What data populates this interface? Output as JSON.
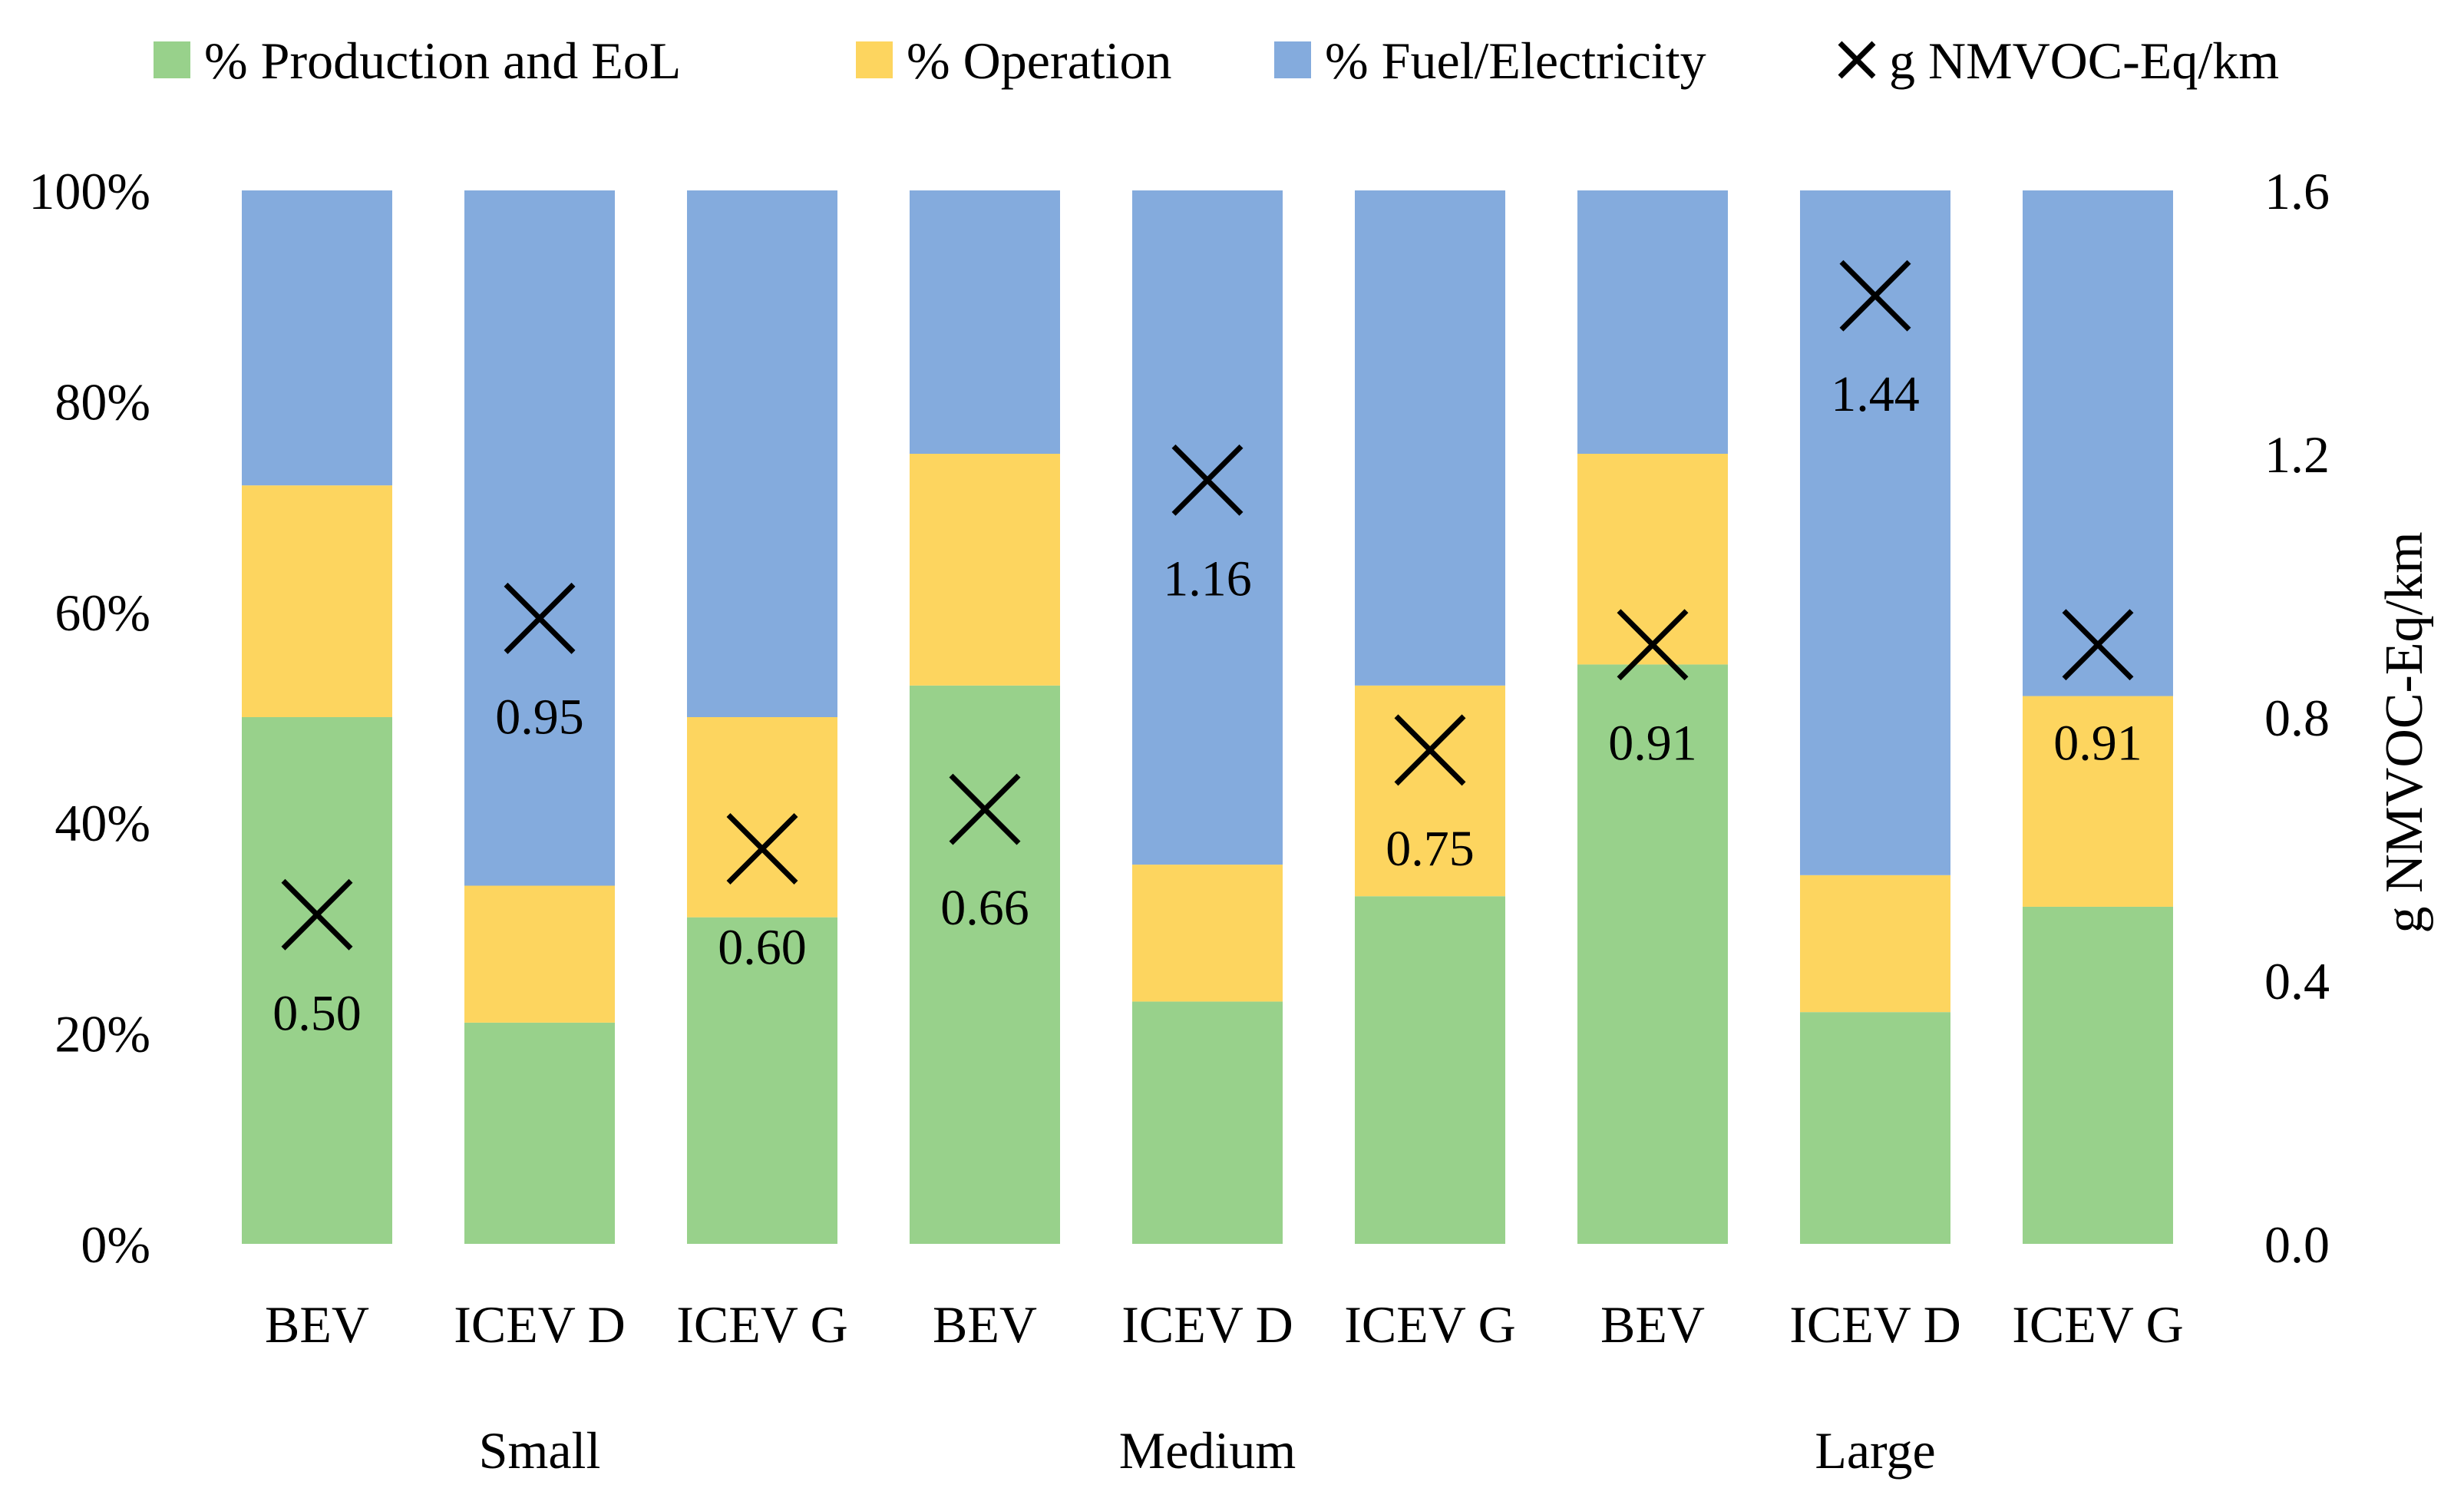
{
  "chart_data": {
    "type": "bar",
    "stacked": true,
    "categories": [
      "BEV",
      "ICEV D",
      "ICEV G",
      "BEV",
      "ICEV D",
      "ICEV G",
      "BEV",
      "ICEV D",
      "ICEV G"
    ],
    "groups": [
      {
        "name": "Small",
        "count": 3
      },
      {
        "name": "Medium",
        "count": 3
      },
      {
        "name": "Large",
        "count": 3
      }
    ],
    "series": [
      {
        "name": "% Production and EoL",
        "color": "#98D18B",
        "values": [
          50,
          21,
          31,
          53,
          23,
          33,
          55,
          22,
          32
        ]
      },
      {
        "name": "% Operation",
        "color": "#FDD55F",
        "values": [
          22,
          13,
          19,
          22,
          13,
          20,
          20,
          13,
          20
        ]
      },
      {
        "name": "% Fuel/Electricity",
        "color": "#84ABDD",
        "values": [
          28,
          66,
          50,
          25,
          64,
          47,
          25,
          65,
          48
        ]
      }
    ],
    "line_series": {
      "name": "g NMVOC-Eq/km",
      "marker": "x",
      "axis": "secondary",
      "values": [
        0.5,
        0.95,
        0.6,
        0.66,
        1.16,
        0.75,
        0.91,
        1.44,
        0.91
      ],
      "labels": [
        "0.50",
        "0.95",
        "0.60",
        "0.66",
        "1.16",
        "0.75",
        "0.91",
        "1.44",
        "0.91"
      ]
    },
    "y_left": {
      "ticks": [
        "0%",
        "20%",
        "40%",
        "60%",
        "80%",
        "100%"
      ],
      "range": [
        0,
        100
      ]
    },
    "y_right": {
      "label": "g NMVOC-Eq/km",
      "ticks": [
        "0.0",
        "0.4",
        "0.8",
        "1.2",
        "1.6"
      ],
      "range": [
        0,
        1.6
      ]
    },
    "legend": {
      "position": "top",
      "items": [
        "% Production and EoL",
        "% Operation",
        "% Fuel/Electricity",
        "g NMVOC-Eq/km"
      ]
    }
  }
}
